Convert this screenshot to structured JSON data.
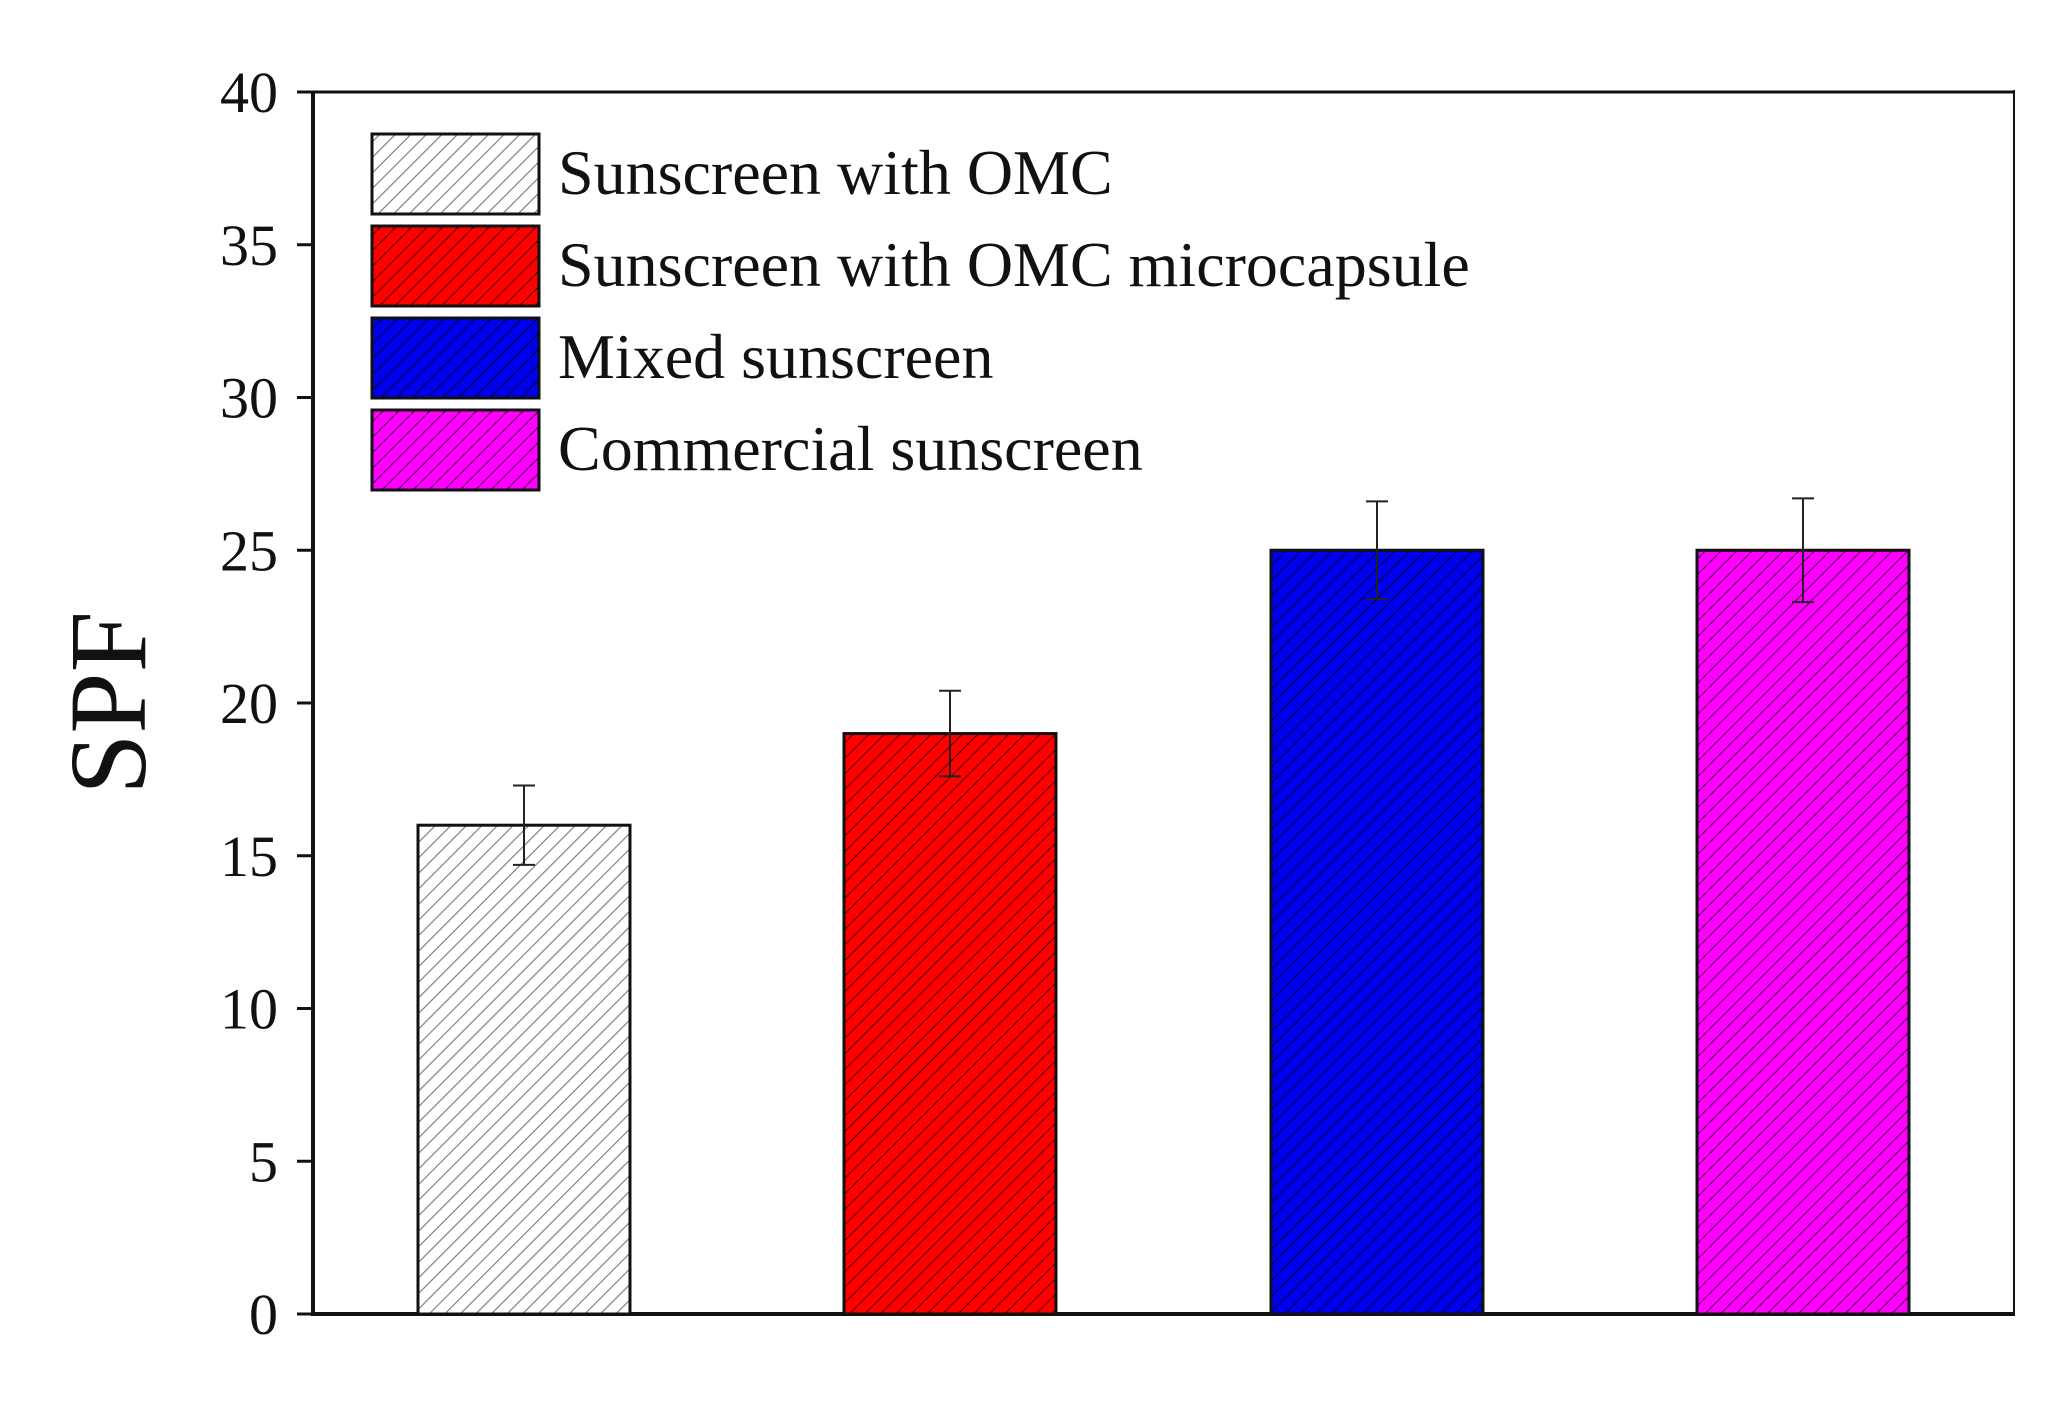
{
  "chart_data": {
    "type": "bar",
    "title": "",
    "xlabel": "",
    "ylabel": "SPF",
    "ylim": [
      0,
      40
    ],
    "yticks": [
      "0",
      "5",
      "10",
      "15",
      "20",
      "25",
      "30",
      "35",
      "40"
    ],
    "grid": false,
    "legend_position": "top-left",
    "categories": [
      "Sunscreen with OMC",
      "Sunscreen with OMC microcapsule",
      "Mixed sunscreen",
      "Commercial sunscreen"
    ],
    "values": [
      16,
      19,
      25,
      25
    ],
    "errors": [
      1.3,
      1.4,
      1.6,
      1.7
    ],
    "colors": [
      "#ffffff",
      "#ff0000",
      "#0000ee",
      "#ff00ff"
    ],
    "hatch_colors": [
      "#777777",
      "#550000",
      "#000044",
      "#550055"
    ]
  }
}
